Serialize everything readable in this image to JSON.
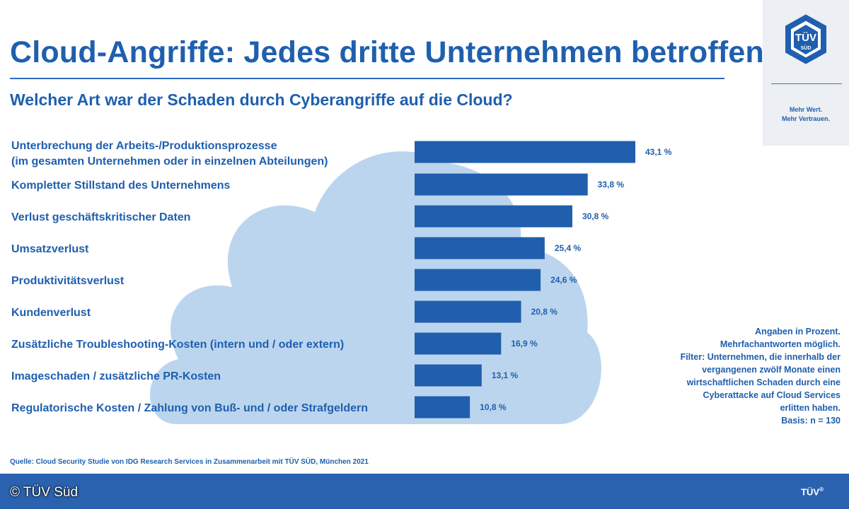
{
  "title": "Cloud-Angriffe: Jedes dritte Unternehmen betroffen",
  "subtitle": "Welcher Art war der Schaden durch Cyberangriffe auf die Cloud?",
  "logo": {
    "mark": "TÜV",
    "sub": "SÜD",
    "slogan": [
      "Mehr Wert.",
      "Mehr Vertrauen."
    ]
  },
  "colors": {
    "bar": "#1f5fae",
    "cloud": "#bcd5ee",
    "footer": "#2a62b0"
  },
  "chart_data": {
    "type": "bar",
    "orientation": "horizontal",
    "title": "Welcher Art war der Schaden durch Cyberangriffe auf die Cloud?",
    "categories": [
      "Unterbrechung der Arbeits-/Produktionsprozesse (im gesamten Unternehmen oder in einzelnen Abteilungen)",
      "Kompletter Stillstand des Unternehmens",
      "Verlust geschäftskritischer Daten",
      "Umsatzverlust",
      "Produktivitätsverlust",
      "Kundenverlust",
      "Zusätzliche Troubleshooting-Kosten (intern und / oder extern)",
      "Imageschaden / zusätzliche PR-Kosten",
      "Regulatorische Kosten / Zahlung von Buß- und / oder Strafgeldern"
    ],
    "label_lines": [
      [
        "Unterbrechung der Arbeits-/Produktionsprozesse",
        "(im gesamten Unternehmen oder in einzelnen Abteilungen)"
      ],
      [
        "Kompletter Stillstand des Unternehmens"
      ],
      [
        "Verlust geschäftskritischer Daten"
      ],
      [
        "Umsatzverlust"
      ],
      [
        "Produktivitätsverlust"
      ],
      [
        "Kundenverlust"
      ],
      [
        "Zusätzliche Troubleshooting-Kosten (intern und / oder extern)"
      ],
      [
        "Imageschaden / zusätzliche PR-Kosten"
      ],
      [
        "Regulatorische Kosten / Zahlung von Buß- und / oder Strafgeldern"
      ]
    ],
    "values": [
      43.1,
      33.8,
      30.8,
      25.4,
      24.6,
      20.8,
      16.9,
      13.1,
      10.8
    ],
    "value_labels": [
      "43,1 %",
      "33,8 %",
      "30,8 %",
      "25,4 %",
      "24,6 %",
      "20,8 %",
      "16,9 %",
      "13,1 %",
      "10,8 %"
    ],
    "unit": "%",
    "xlim": [
      0,
      43.1
    ]
  },
  "notes": [
    "Angaben in Prozent.",
    "Mehrfachantworten möglich.",
    "Filter: Unternehmen, die innerhalb der",
    "vergangenen zwölf Monate einen",
    "wirtschaftlichen Schaden durch eine",
    "Cyberattacke auf Cloud Services",
    "erlitten haben.",
    "Basis: n = 130"
  ],
  "source": "Quelle: Cloud Security Studie von IDG Research Services in Zusammenarbeit mit TÜV SÜD, München 2021",
  "footer": {
    "copyright": "© TÜV Süd",
    "brand": "TÜV",
    "brand_mark": "®"
  }
}
